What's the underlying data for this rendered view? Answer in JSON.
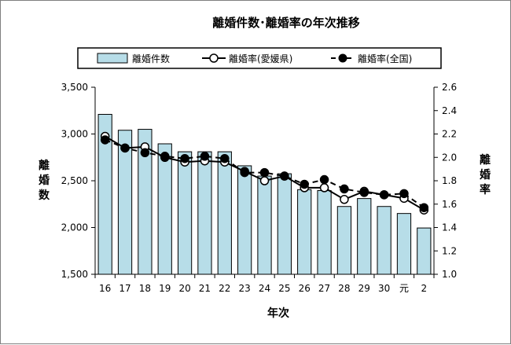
{
  "chart_data": {
    "type": "bar",
    "title": "離婚件数･離婚率の年次推移",
    "xlabel": "年次",
    "ylabel": "離婚数",
    "y2label": "離婚率",
    "categories": [
      "16",
      "17",
      "18",
      "19",
      "20",
      "21",
      "22",
      "23",
      "24",
      "25",
      "26",
      "27",
      "28",
      "29",
      "30",
      "元",
      "2"
    ],
    "ylim": [
      1500,
      3500
    ],
    "yticks": [
      "1,500",
      "2,000",
      "2,500",
      "3,000",
      "3,500"
    ],
    "y2lim": [
      1.0,
      2.6
    ],
    "y2ticks": [
      "1.0",
      "1.2",
      "1.4",
      "1.6",
      "1.8",
      "2.0",
      "2.2",
      "2.4",
      "2.6"
    ],
    "legend": "top",
    "grid": false,
    "series": [
      {
        "name": "離婚件数",
        "kind": "bar",
        "axis": "left",
        "values": [
          3210,
          3040,
          3050,
          2895,
          2810,
          2810,
          2810,
          2660,
          2550,
          2575,
          2405,
          2395,
          2225,
          2310,
          2225,
          2150,
          1995
        ],
        "color": "#b7dde8"
      },
      {
        "name": "離婚率(愛媛県)",
        "kind": "line",
        "axis": "right",
        "marker": "open-circle",
        "values": [
          2.18,
          2.08,
          2.09,
          2.0,
          1.96,
          1.97,
          1.96,
          1.88,
          1.8,
          1.84,
          1.74,
          1.74,
          1.64,
          1.71,
          1.68,
          1.65,
          1.55
        ]
      },
      {
        "name": "離婚率(全国)",
        "kind": "line",
        "axis": "right",
        "marker": "filled-circle",
        "dashed": true,
        "values": [
          2.15,
          2.08,
          2.04,
          2.01,
          1.99,
          2.01,
          1.99,
          1.87,
          1.87,
          1.84,
          1.77,
          1.81,
          1.73,
          1.7,
          1.68,
          1.69,
          1.57
        ]
      }
    ]
  }
}
